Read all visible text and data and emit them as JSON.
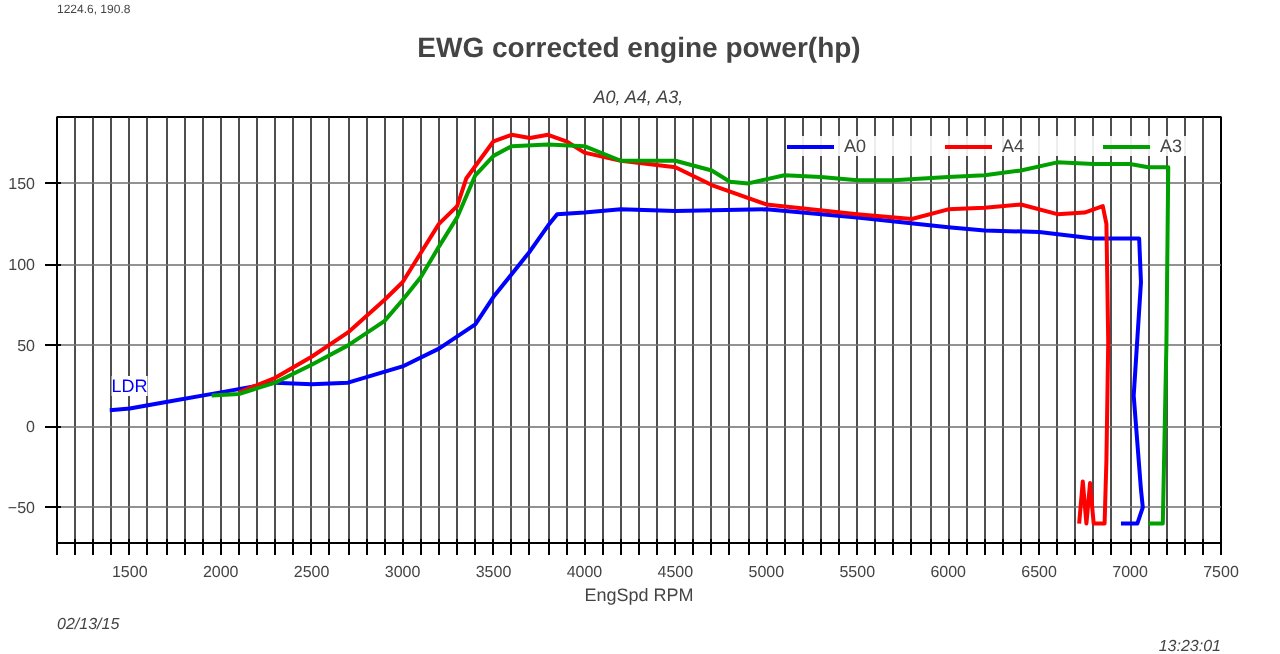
{
  "chart_data": {
    "type": "line",
    "title": "EWG corrected engine power(hp)",
    "subtitle": "A0, A4, A3,",
    "xlabel": "EngSpd RPM",
    "xlim": [
      1100,
      7500
    ],
    "ylim": [
      -72,
      191
    ],
    "xticks": [
      {
        "value": 1100,
        "label": null
      },
      {
        "value": 1200,
        "label": null
      },
      {
        "value": 1300,
        "label": null
      },
      {
        "value": 1400,
        "label": null
      },
      1500,
      {
        "value": 1600,
        "label": null
      },
      {
        "value": 1700,
        "label": null
      },
      {
        "value": 1800,
        "label": null
      },
      {
        "value": 1900,
        "label": null
      },
      2000,
      {
        "value": 2100,
        "label": null
      },
      {
        "value": 2200,
        "label": null
      },
      {
        "value": 2300,
        "label": null
      },
      {
        "value": 2400,
        "label": null
      },
      2500,
      {
        "value": 2600,
        "label": null
      },
      {
        "value": 2700,
        "label": null
      },
      {
        "value": 2800,
        "label": null
      },
      {
        "value": 2900,
        "label": null
      },
      3000,
      {
        "value": 3100,
        "label": null
      },
      {
        "value": 3200,
        "label": null
      },
      {
        "value": 3300,
        "label": null
      },
      {
        "value": 3400,
        "label": null
      },
      3500,
      {
        "value": 3600,
        "label": null
      },
      {
        "value": 3700,
        "label": null
      },
      {
        "value": 3800,
        "label": null
      },
      {
        "value": 3900,
        "label": null
      },
      4000,
      {
        "value": 4100,
        "label": null
      },
      {
        "value": 4200,
        "label": null
      },
      {
        "value": 4300,
        "label": null
      },
      {
        "value": 4400,
        "label": null
      },
      4500,
      {
        "value": 4600,
        "label": null
      },
      {
        "value": 4700,
        "label": null
      },
      {
        "value": 4800,
        "label": null
      },
      {
        "value": 4900,
        "label": null
      },
      5000,
      {
        "value": 5100,
        "label": null
      },
      {
        "value": 5200,
        "label": null
      },
      {
        "value": 5300,
        "label": null
      },
      {
        "value": 5400,
        "label": null
      },
      5500,
      {
        "value": 5600,
        "label": null
      },
      {
        "value": 5700,
        "label": null
      },
      {
        "value": 5800,
        "label": null
      },
      {
        "value": 5900,
        "label": null
      },
      6000,
      {
        "value": 6100,
        "label": null
      },
      {
        "value": 6200,
        "label": null
      },
      {
        "value": 6300,
        "label": null
      },
      {
        "value": 6400,
        "label": null
      },
      6500,
      {
        "value": 6600,
        "label": null
      },
      {
        "value": 6700,
        "label": null
      },
      {
        "value": 6800,
        "label": null
      },
      {
        "value": 6900,
        "label": null
      },
      7000,
      {
        "value": 7100,
        "label": null
      },
      {
        "value": 7200,
        "label": null
      },
      {
        "value": 7300,
        "label": null
      },
      {
        "value": 7400,
        "label": null
      },
      7500
    ],
    "yticks": [
      -50,
      0,
      50,
      100,
      150
    ],
    "grid": true,
    "legend": "top",
    "marker": "none",
    "line_style": "solid",
    "series": [
      {
        "name": "A0",
        "color": "#0000ff",
        "x": [
          1390,
          1500,
          1700,
          2000,
          2200,
          2300,
          2500,
          2700,
          3000,
          3200,
          3400,
          3500,
          3700,
          3800,
          3850,
          4000,
          4200,
          4500,
          5000,
          5500,
          6000,
          6200,
          6500,
          6800,
          7050,
          7060,
          7020,
          7060,
          7070,
          7040,
          6950
        ],
        "values": [
          10,
          11,
          15,
          21,
          25,
          27,
          26,
          27,
          37,
          48,
          63,
          80,
          108,
          124,
          131,
          132,
          134,
          133,
          134,
          129,
          123,
          121,
          120,
          116,
          116,
          89,
          19,
          -39,
          -50,
          -60,
          -60
        ]
      },
      {
        "name": "A4",
        "color": "#ff0000",
        "x": [
          2100,
          2300,
          2500,
          2700,
          2900,
          3000,
          3100,
          3200,
          3300,
          3350,
          3500,
          3600,
          3700,
          3800,
          3900,
          4000,
          4200,
          4500,
          4700,
          5000,
          5500,
          5800,
          6000,
          6200,
          6400,
          6600,
          6750,
          6850,
          6870,
          6880,
          6870,
          6860,
          6800,
          6780,
          6760,
          6740,
          6720
        ],
        "values": [
          21,
          30,
          43,
          58,
          78,
          89,
          107,
          125,
          136,
          153,
          176,
          180,
          178,
          180,
          176,
          169,
          164,
          160,
          149,
          137,
          131,
          128,
          134,
          135,
          137,
          131,
          132,
          136,
          125,
          52,
          -21,
          -60,
          -60,
          -35,
          -60,
          -34,
          -60
        ]
      },
      {
        "name": "A3",
        "color": "#00a000",
        "x": [
          1950,
          2100,
          2300,
          2500,
          2700,
          2900,
          3000,
          3100,
          3200,
          3300,
          3400,
          3500,
          3600,
          3800,
          4000,
          4200,
          4500,
          4700,
          4800,
          4900,
          5100,
          5300,
          5500,
          5700,
          6000,
          6200,
          6400,
          6600,
          6800,
          7000,
          7100,
          7210,
          7200,
          7180,
          7100
        ],
        "values": [
          19,
          20,
          27,
          38,
          50,
          65,
          78,
          92,
          111,
          129,
          155,
          167,
          173,
          174,
          173,
          164,
          164,
          158,
          151,
          150,
          155,
          154,
          152,
          152,
          154,
          155,
          158,
          163,
          162,
          162,
          160,
          160,
          52,
          -60,
          -60
        ]
      }
    ],
    "annotations": [
      "1224.6, 190.8",
      "02/13/15",
      "13:23:01",
      {
        "text": "LDR",
        "x": 1400,
        "y": 15
      }
    ]
  }
}
